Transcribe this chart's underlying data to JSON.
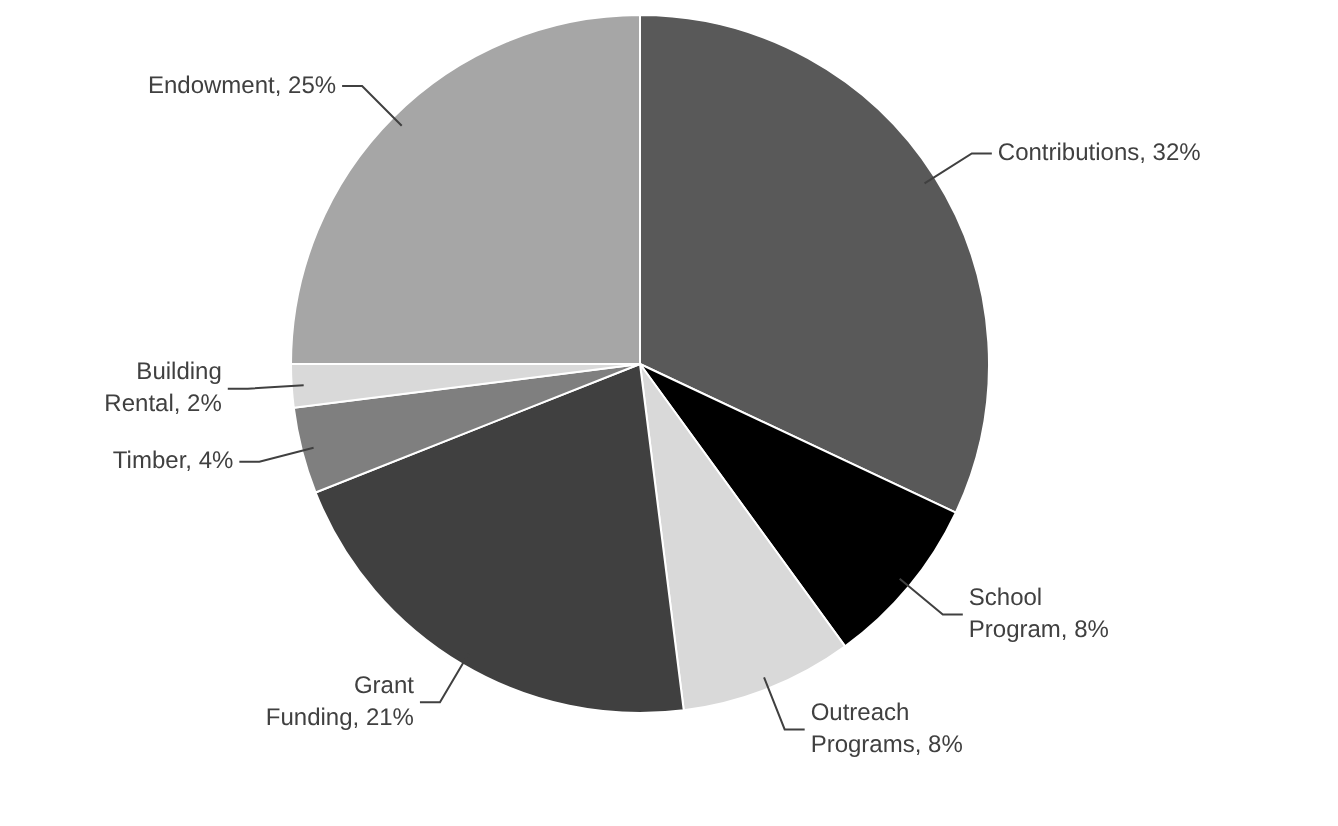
{
  "chart_data": {
    "type": "pie",
    "categories": [
      "Contributions",
      "School Program",
      "Outreach Programs",
      "Grant Funding",
      "Timber",
      "Building Rental",
      "Endowment"
    ],
    "values": [
      32,
      8,
      8,
      21,
      4,
      2,
      25
    ],
    "value_labels": [
      "32%",
      "8%",
      "8%",
      "21%",
      "4%",
      "2%",
      "25%"
    ],
    "colors": [
      "#595959",
      "#000000",
      "#d9d9d9",
      "#404040",
      "#7f7f7f",
      "#d9d9d9",
      "#a6a6a6"
    ],
    "legend": false
  }
}
